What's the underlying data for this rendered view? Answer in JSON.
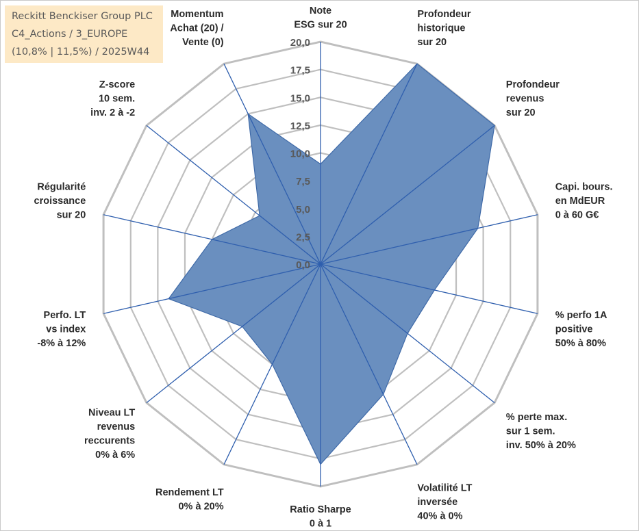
{
  "info_box": {
    "line1": "Reckitt Benckiser Group PLC",
    "line2": "C4_Actions / 3_EUROPE",
    "line3": "(10,8% | 11,5%) / 2025W44"
  },
  "colors": {
    "fill": "#6a8fbf",
    "stroke": "#3f6aa8",
    "axis": "#2f5fae",
    "grid": "#bfbfbf",
    "info_bg": "#fde9c6"
  },
  "chart_data": {
    "type": "radar",
    "rmin": 0,
    "rmax": 20,
    "ticks": [
      "0,0",
      "2,5",
      "5,0",
      "7,5",
      "10,0",
      "12,5",
      "15,0",
      "17,5",
      "20,0"
    ],
    "axes": [
      {
        "label": [
          "Note",
          "ESG sur 20"
        ],
        "value": 9.0
      },
      {
        "label": [
          "Profondeur",
          "historique",
          "sur 20"
        ],
        "value": 20.0
      },
      {
        "label": [
          "Profondeur",
          "revenus",
          "sur 20"
        ],
        "value": 20.0
      },
      {
        "label": [
          "Capi. bours.",
          "en MdEUR",
          "0 à 60 G€"
        ],
        "value": 14.5
      },
      {
        "label": [
          "% perfo 1A",
          "positive",
          "50% à 80%"
        ],
        "value": 10.5
      },
      {
        "label": [
          "% perte max.",
          "sur 1 sem.",
          "inv. 50% à 20%"
        ],
        "value": 10.0
      },
      {
        "label": [
          "Volatilité LT",
          "inversée",
          "40% à 0%"
        ],
        "value": 13.0
      },
      {
        "label": [
          "Ratio Sharpe",
          "0 à 1"
        ],
        "value": 18.0
      },
      {
        "label": [
          "Rendement LT",
          "0% à 20%"
        ],
        "value": 10.0
      },
      {
        "label": [
          "Niveau LT",
          "revenus",
          "reccurents",
          "0% à 6%"
        ],
        "value": 9.0
      },
      {
        "label": [
          "Perfo. LT",
          "vs index",
          "-8% à 12%"
        ],
        "value": 14.0
      },
      {
        "label": [
          "Régularité",
          "croissance",
          "sur 20"
        ],
        "value": 10.0
      },
      {
        "label": [
          "Z-score",
          "10 sem.",
          "inv. 2 à -2"
        ],
        "value": 7.0
      },
      {
        "label": [
          "Momentum",
          "Achat (20) /",
          "Vente (0)"
        ],
        "value": 15.0
      }
    ]
  }
}
